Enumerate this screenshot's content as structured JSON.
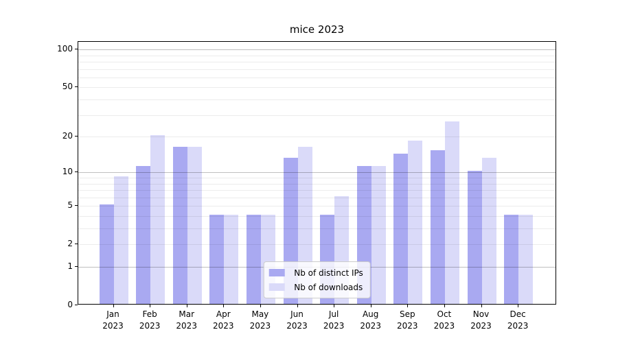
{
  "chart_data": {
    "type": "bar",
    "title": "mice 2023",
    "categories": [
      "Jan",
      "Feb",
      "Mar",
      "Apr",
      "May",
      "Jun",
      "Jul",
      "Aug",
      "Sep",
      "Oct",
      "Nov",
      "Dec"
    ],
    "category_year": "2023",
    "series": [
      {
        "name": "Nb of distinct IPs",
        "color": "#a9a9f1",
        "values": [
          5,
          11,
          16,
          4,
          4,
          13,
          4,
          11,
          14,
          15,
          10,
          4
        ]
      },
      {
        "name": "Nb of downloads",
        "color": "#dadaf9",
        "values": [
          9,
          20,
          16,
          4,
          4,
          16,
          6,
          11,
          18,
          26,
          13,
          4
        ]
      }
    ],
    "xlabel": "",
    "ylabel": "",
    "yscale": "log1p",
    "ylim": [
      0,
      115
    ],
    "yticks": [
      0,
      1,
      2,
      5,
      10,
      20,
      50,
      100
    ],
    "major_gridlines": [
      1,
      10,
      100
    ],
    "minor_gridlines": [
      2,
      3,
      4,
      5,
      6,
      7,
      8,
      9,
      20,
      30,
      40,
      50,
      60,
      70,
      80,
      90
    ],
    "grid": true,
    "legend_position": "lower center"
  }
}
